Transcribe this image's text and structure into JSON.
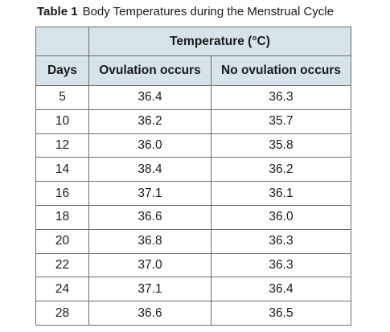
{
  "caption": {
    "label": "Table 1",
    "title": "Body Temperatures during the Menstrual Cycle"
  },
  "table": {
    "group_header": "Temperature (°C)",
    "columns": [
      "Days",
      "Ovulation occurs",
      "No ovulation occurs"
    ],
    "rows": [
      [
        "5",
        "36.4",
        "36.3"
      ],
      [
        "10",
        "36.2",
        "35.7"
      ],
      [
        "12",
        "36.0",
        "35.8"
      ],
      [
        "14",
        "38.4",
        "36.2"
      ],
      [
        "16",
        "37.1",
        "36.1"
      ],
      [
        "18",
        "36.6",
        "36.0"
      ],
      [
        "20",
        "36.8",
        "36.3"
      ],
      [
        "22",
        "37.0",
        "36.3"
      ],
      [
        "24",
        "37.1",
        "36.4"
      ],
      [
        "28",
        "36.6",
        "36.5"
      ]
    ],
    "header_color": "#d6e3ea",
    "border_color": "#6b6b6b"
  }
}
